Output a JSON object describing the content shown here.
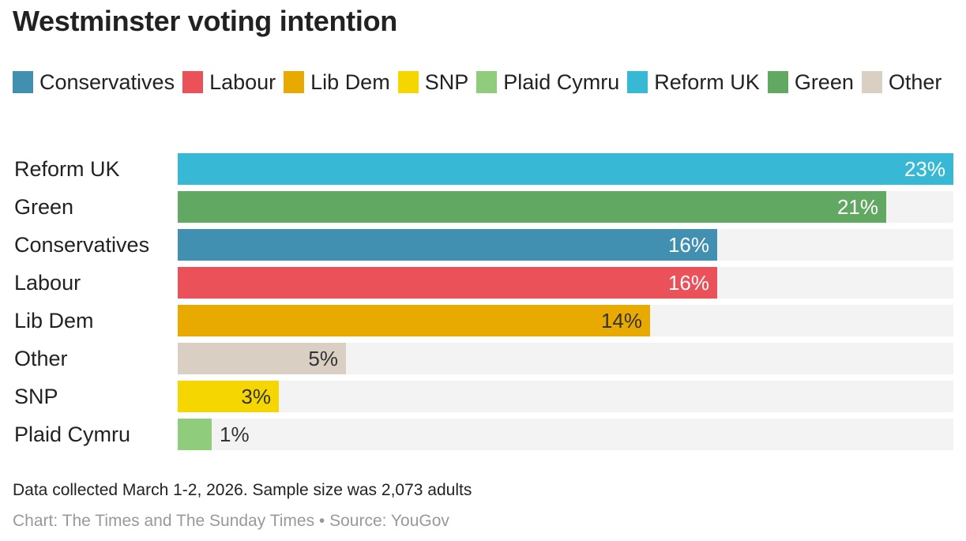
{
  "chart_data": {
    "type": "bar",
    "orientation": "horizontal",
    "title": "Westminster voting intention",
    "xlabel": "",
    "ylabel": "",
    "xlim": [
      0,
      23
    ],
    "grid": false,
    "legend_position": "top",
    "unit": "%",
    "legend": [
      {
        "name": "Conservatives",
        "color": "#4190b2"
      },
      {
        "name": "Labour",
        "color": "#ea5158"
      },
      {
        "name": "Lib Dem",
        "color": "#e8a900"
      },
      {
        "name": "SNP",
        "color": "#f5d600"
      },
      {
        "name": "Plaid Cymru",
        "color": "#8fcc7c"
      },
      {
        "name": "Reform UK",
        "color": "#37b8d5"
      },
      {
        "name": "Green",
        "color": "#61a862"
      },
      {
        "name": "Other",
        "color": "#d9cfc3"
      }
    ],
    "categories": [
      "Reform UK",
      "Green",
      "Conservatives",
      "Labour",
      "Lib Dem",
      "Other",
      "SNP",
      "Plaid Cymru"
    ],
    "values": [
      23,
      21,
      16,
      16,
      14,
      5,
      3,
      1
    ],
    "value_labels": [
      "23%",
      "21%",
      "16%",
      "16%",
      "14%",
      "5%",
      "3%",
      "1%"
    ],
    "colors": [
      "#37b8d5",
      "#61a862",
      "#4190b2",
      "#ea5158",
      "#e8a900",
      "#d9cfc3",
      "#f5d600",
      "#8fcc7c"
    ],
    "label_colors": [
      "#ffffff",
      "#ffffff",
      "#ffffff",
      "#ffffff",
      "#333333",
      "#333333",
      "#333333",
      "#333333"
    ]
  },
  "footer": {
    "note": "Data collected March 1-2, 2026. Sample size was 2,073 adults",
    "source": "Chart: The Times and The Sunday Times • Source: YouGov"
  }
}
